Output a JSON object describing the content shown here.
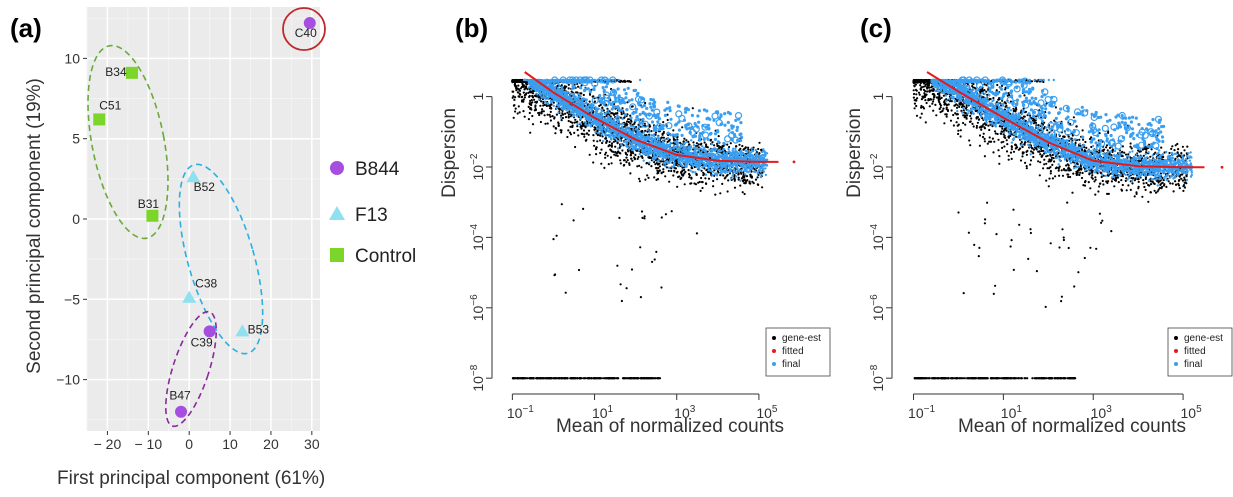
{
  "chart_data": [
    {
      "panel": "(a)",
      "type": "scatter",
      "xlabel": "First principal component (61%)",
      "ylabel": "Second principal component (19%)",
      "xlim": [
        -25,
        32
      ],
      "ylim": [
        -13.2,
        13.2
      ],
      "x_ticks": [
        -20,
        -10,
        0,
        10,
        20,
        30
      ],
      "x_tick_labels": [
        "− 20",
        "− 10",
        "0",
        "10",
        "20",
        "30"
      ],
      "y_ticks": [
        10,
        5,
        0,
        -5,
        -10
      ],
      "y_tick_labels": [
        "10",
        "5",
        "0",
        "−5",
        "−10"
      ],
      "grid": true,
      "legend_position": "right",
      "series": [
        {
          "name": "B844",
          "marker": "circle",
          "color": "#a64ee0",
          "points": [
            {
              "label": "C40",
              "x": 29.5,
              "y": 12.2
            },
            {
              "label": "C39",
              "x": 5,
              "y": -7
            },
            {
              "label": "B47",
              "x": -2,
              "y": -12
            }
          ]
        },
        {
          "name": "F13",
          "marker": "triangle",
          "color": "#8fe0f0",
          "points": [
            {
              "label": "B52",
              "x": 1,
              "y": 2.6
            },
            {
              "label": "C38",
              "x": 0,
              "y": -4.9
            },
            {
              "label": "B53",
              "x": 13,
              "y": -7
            }
          ]
        },
        {
          "name": "Control",
          "marker": "square",
          "color": "#7cd62a",
          "points": [
            {
              "label": "B34",
              "x": -14,
              "y": 9.1
            },
            {
              "label": "C51",
              "x": -22,
              "y": 6.2
            },
            {
              "label": "B31",
              "x": -9,
              "y": 0.2
            }
          ]
        }
      ],
      "groupings": [
        {
          "kind": "dashed ellipse",
          "color": "#6aaa3a",
          "members": [
            "B34",
            "C51",
            "B31"
          ]
        },
        {
          "kind": "dashed ellipse",
          "color": "#2ab0e0",
          "members": [
            "B52",
            "C38",
            "B53",
            "C39"
          ]
        },
        {
          "kind": "dashed ellipse",
          "color": "#8a2a9a",
          "members": [
            "C39",
            "B47"
          ]
        },
        {
          "kind": "solid circle",
          "color": "#c0282a",
          "members": [
            "C40"
          ]
        }
      ]
    },
    {
      "panel": "(b)",
      "type": "scatter",
      "xlabel": "Mean of normalized counts",
      "ylabel": "Dispersion",
      "x_scale": "log10",
      "y_scale": "log10",
      "xlim": [
        0.05,
        1000000
      ],
      "ylim": [
        6e-09,
        5
      ],
      "x_ticks": [
        0.1,
        10,
        1000,
        100000
      ],
      "x_tick_labels": [
        {
          "base": "10",
          "exp": "−1"
        },
        {
          "base": "10",
          "exp": "1"
        },
        {
          "base": "10",
          "exp": "3"
        },
        {
          "base": "10",
          "exp": "5"
        }
      ],
      "y_ticks": [
        1,
        0.01,
        0.0001,
        1e-06,
        1e-08
      ],
      "y_tick_labels": [
        {
          "base": "1",
          "exp": ""
        },
        {
          "base": "10",
          "exp": "−2"
        },
        {
          "base": "10",
          "exp": "−4"
        },
        {
          "base": "10",
          "exp": "−6"
        },
        {
          "base": "10",
          "exp": "−8"
        }
      ],
      "legend_position": "bottom-right",
      "legend": [
        "gene-est",
        "fitted",
        "final"
      ],
      "series": [
        {
          "name": "gene-est",
          "color": "#000000",
          "kind": "gene-wise estimates (dense cloud)"
        },
        {
          "name": "fitted",
          "color": "#e41a1c",
          "kind": "trend line",
          "points": [
            [
              0.2,
              5
            ],
            [
              1,
              1.3
            ],
            [
              10,
              0.25
            ],
            [
              100,
              0.06
            ],
            [
              1000,
              0.022
            ],
            [
              10000,
              0.015
            ],
            [
              100000,
              0.014
            ],
            [
              300000,
              0.014
            ]
          ]
        },
        {
          "name": "final",
          "color": "#3a9ff0",
          "kind": "final estimates (dense cloud)"
        }
      ]
    },
    {
      "panel": "(c)",
      "type": "scatter",
      "xlabel": "Mean of normalized counts",
      "ylabel": "Dispersion",
      "x_scale": "log10",
      "y_scale": "log10",
      "xlim": [
        0.05,
        1000000
      ],
      "ylim": [
        6e-09,
        5
      ],
      "x_ticks": [
        0.1,
        10,
        1000,
        100000
      ],
      "x_tick_labels": [
        {
          "base": "10",
          "exp": "−1"
        },
        {
          "base": "10",
          "exp": "1"
        },
        {
          "base": "10",
          "exp": "3"
        },
        {
          "base": "10",
          "exp": "5"
        }
      ],
      "y_ticks": [
        1,
        0.01,
        0.0001,
        1e-06,
        1e-08
      ],
      "y_tick_labels": [
        {
          "base": "1",
          "exp": ""
        },
        {
          "base": "10",
          "exp": "−2"
        },
        {
          "base": "10",
          "exp": "−4"
        },
        {
          "base": "10",
          "exp": "−6"
        },
        {
          "base": "10",
          "exp": "−8"
        }
      ],
      "legend_position": "bottom-right",
      "legend": [
        "gene-est",
        "fitted",
        "final"
      ],
      "series": [
        {
          "name": "gene-est",
          "color": "#000000",
          "kind": "gene-wise estimates (dense cloud)"
        },
        {
          "name": "fitted",
          "color": "#e41a1c",
          "kind": "trend line",
          "points": [
            [
              0.2,
              5
            ],
            [
              1,
              1.4
            ],
            [
              10,
              0.25
            ],
            [
              100,
              0.05
            ],
            [
              1000,
              0.015
            ],
            [
              10000,
              0.0105
            ],
            [
              100000,
              0.0098
            ],
            [
              300000,
              0.0098
            ]
          ]
        },
        {
          "name": "final",
          "color": "#3a9ff0",
          "kind": "final estimates (dense cloud)"
        }
      ]
    }
  ]
}
